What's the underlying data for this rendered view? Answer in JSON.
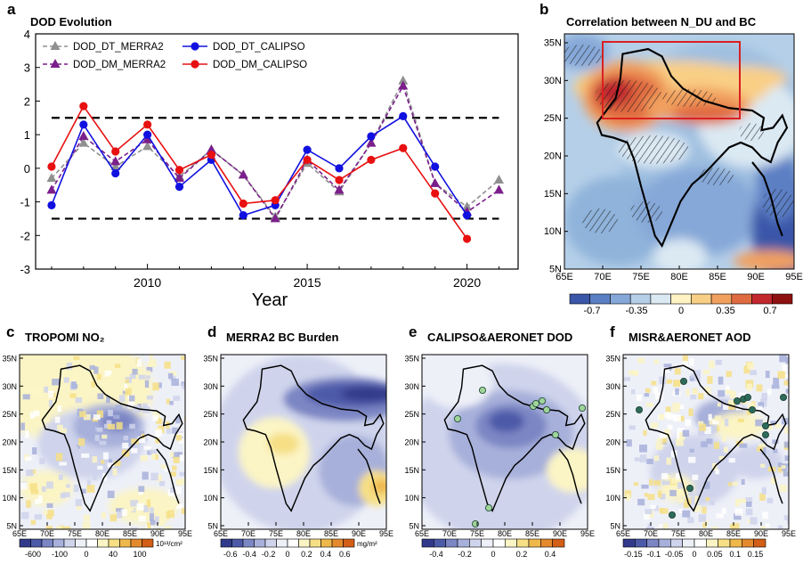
{
  "panels": {
    "a": {
      "letter": "a",
      "title": "DOD Evolution"
    },
    "b": {
      "letter": "b",
      "title": "Correlation between N_DU and BC"
    },
    "c": {
      "letter": "c",
      "title": "TROPOMI NO₂",
      "unit": "10¹³/cm²"
    },
    "d": {
      "letter": "d",
      "title": "MERRA2 BC Burden",
      "unit": "mg/m²"
    },
    "e": {
      "letter": "e",
      "title": "CALIPSO&AERONET DOD",
      "unit": ""
    },
    "f": {
      "letter": "f",
      "title": "MISR&AERONET AOD",
      "unit": ""
    }
  },
  "chart_data": [
    {
      "type": "line",
      "panel": "a",
      "title": "DOD Evolution",
      "xlabel": "Year",
      "ylabel": "",
      "xlim": [
        2006.5,
        2021.6
      ],
      "ylim": [
        -3,
        4
      ],
      "xticks": [
        2010,
        2015,
        2020
      ],
      "yticks": [
        -3,
        -2,
        -1,
        0,
        1,
        2,
        3,
        4
      ],
      "thresholds": [
        1.5,
        -1.5
      ],
      "legend": "top-left, two columns",
      "series": [
        {
          "name": "DOD_DT_MERRA2",
          "color": "#909090",
          "dashed": true,
          "marker": "triangle",
          "x": [
            2007,
            2008,
            2009,
            2010,
            2011,
            2012,
            2013,
            2014,
            2015,
            2016,
            2017,
            2018,
            2019,
            2020,
            2021
          ],
          "values": [
            -0.3,
            0.75,
            0.05,
            0.65,
            -0.25,
            0.55,
            -0.2,
            -1.45,
            0.15,
            -0.7,
            0.75,
            2.6,
            -0.45,
            -1.15,
            -0.35
          ]
        },
        {
          "name": "DOD_DM_MERRA2",
          "color": "#7b1f8c",
          "dashed": true,
          "marker": "triangle",
          "x": [
            2007,
            2008,
            2009,
            2010,
            2011,
            2012,
            2013,
            2014,
            2015,
            2016,
            2017,
            2018,
            2019,
            2020,
            2021
          ],
          "values": [
            -0.65,
            0.95,
            0.2,
            0.85,
            -0.3,
            0.55,
            -0.2,
            -1.5,
            0.25,
            -0.65,
            0.75,
            2.45,
            -0.45,
            -1.3,
            -0.65
          ]
        },
        {
          "name": "DOD_DT_CALIPSO",
          "color": "#1010e0",
          "dashed": false,
          "marker": "circle",
          "x": [
            2007,
            2008,
            2009,
            2010,
            2011,
            2012,
            2013,
            2014,
            2015,
            2016,
            2017,
            2018,
            2019,
            2020
          ],
          "values": [
            -1.1,
            1.3,
            -0.15,
            1.0,
            -0.55,
            0.25,
            -1.4,
            -1.1,
            0.55,
            0.0,
            0.95,
            1.55,
            0.05,
            -1.4
          ]
        },
        {
          "name": "DOD_DM_CALIPSO",
          "color": "#e81010",
          "dashed": false,
          "marker": "circle",
          "x": [
            2007,
            2008,
            2009,
            2010,
            2011,
            2012,
            2013,
            2014,
            2015,
            2016,
            2017,
            2018,
            2019,
            2020
          ],
          "values": [
            0.05,
            1.85,
            0.5,
            1.3,
            -0.05,
            0.4,
            -1.05,
            -0.95,
            0.25,
            -0.35,
            0.25,
            0.6,
            -0.75,
            -2.1
          ]
        }
      ]
    },
    {
      "type": "heatmap",
      "panel": "b",
      "title": "Correlation between N_DU and BC",
      "xticks": [
        "65E",
        "70E",
        "75E",
        "80E",
        "85E",
        "90E",
        "95E"
      ],
      "yticks": [
        "35N",
        "30N",
        "25N",
        "20N",
        "15N",
        "10N",
        "5N"
      ],
      "colorbar_ticks": [
        "-0.7",
        "-0.35",
        "0",
        "0.35",
        "0.7"
      ],
      "colorbar_colors": [
        "#3a56a8",
        "#5b7fc4",
        "#86a8d8",
        "#b5cfe8",
        "#dbe9f3",
        "#fff3c4",
        "#f9cf86",
        "#f1a05e",
        "#e06b41",
        "#c1272d",
        "#8e1010"
      ]
    },
    {
      "type": "heatmap",
      "panel": "c",
      "title": "TROPOMI NO₂",
      "xticks": [
        "65E",
        "70E",
        "75E",
        "80E",
        "85E",
        "90E",
        "95E"
      ],
      "yticks": [
        "35N",
        "30N",
        "25N",
        "20N",
        "15N",
        "10N",
        "5N"
      ],
      "colorbar_ticks": [
        "-600",
        "-100",
        "0",
        "40",
        "100"
      ],
      "unit": "10¹³/cm²",
      "colorbar_colors": [
        "#313a8a",
        "#4d5aa8",
        "#7b86c4",
        "#a7b0da",
        "#cfd4ec",
        "#eef0f8",
        "#ffffff",
        "#fbf4c4",
        "#f6df85",
        "#efb84b",
        "#e48a2d",
        "#d25e17"
      ]
    },
    {
      "type": "heatmap",
      "panel": "d",
      "title": "MERRA2 BC Burden",
      "xticks": [
        "65E",
        "70E",
        "75E",
        "80E",
        "85E",
        "90E",
        "95E"
      ],
      "yticks": [
        "35N",
        "30N",
        "25N",
        "20N",
        "15N",
        "10N",
        "5N"
      ],
      "colorbar_ticks": [
        "-0.6",
        "-0.4",
        "-0.2",
        "0",
        "0.2",
        "0.4",
        "0.6"
      ],
      "unit": "mg/m²",
      "colorbar_colors": [
        "#313a8a",
        "#4d5aa8",
        "#7b86c4",
        "#a7b0da",
        "#cfd4ec",
        "#eef0f8",
        "#ffffff",
        "#fbf4c4",
        "#f6df85",
        "#efb84b",
        "#e48a2d",
        "#d25e17"
      ]
    },
    {
      "type": "heatmap",
      "panel": "e",
      "title": "CALIPSO&AERONET DOD",
      "xticks": [
        "65E",
        "70E",
        "75E",
        "80E",
        "85E",
        "90E",
        "95E"
      ],
      "yticks": [
        "35N",
        "30N",
        "25N",
        "20N",
        "15N",
        "10N",
        "5N"
      ],
      "colorbar_ticks": [
        "-0.4",
        "-0.2",
        "0",
        "0.2",
        "0.4"
      ],
      "colorbar_colors": [
        "#313a8a",
        "#4d5aa8",
        "#7b86c4",
        "#a7b0da",
        "#cfd4ec",
        "#eef0f8",
        "#ffffff",
        "#fbf4c4",
        "#f6df85",
        "#efb84b",
        "#e48a2d",
        "#d25e17"
      ]
    },
    {
      "type": "heatmap",
      "panel": "f",
      "title": "MISR&AERONET AOD",
      "xticks": [
        "65E",
        "70E",
        "75E",
        "80E",
        "85E",
        "90E",
        "95E"
      ],
      "yticks": [
        "35N",
        "30N",
        "25N",
        "20N",
        "15N",
        "10N",
        "5N"
      ],
      "colorbar_ticks": [
        "-0.15",
        "-0.1",
        "-0.05",
        "0",
        "0.05",
        "0.1",
        "0.15"
      ],
      "colorbar_colors": [
        "#313a8a",
        "#4d5aa8",
        "#7b86c4",
        "#a7b0da",
        "#cfd4ec",
        "#eef0f8",
        "#ffffff",
        "#fbf4c4",
        "#f6df85",
        "#efb84b",
        "#e48a2d",
        "#d25e17"
      ]
    }
  ]
}
